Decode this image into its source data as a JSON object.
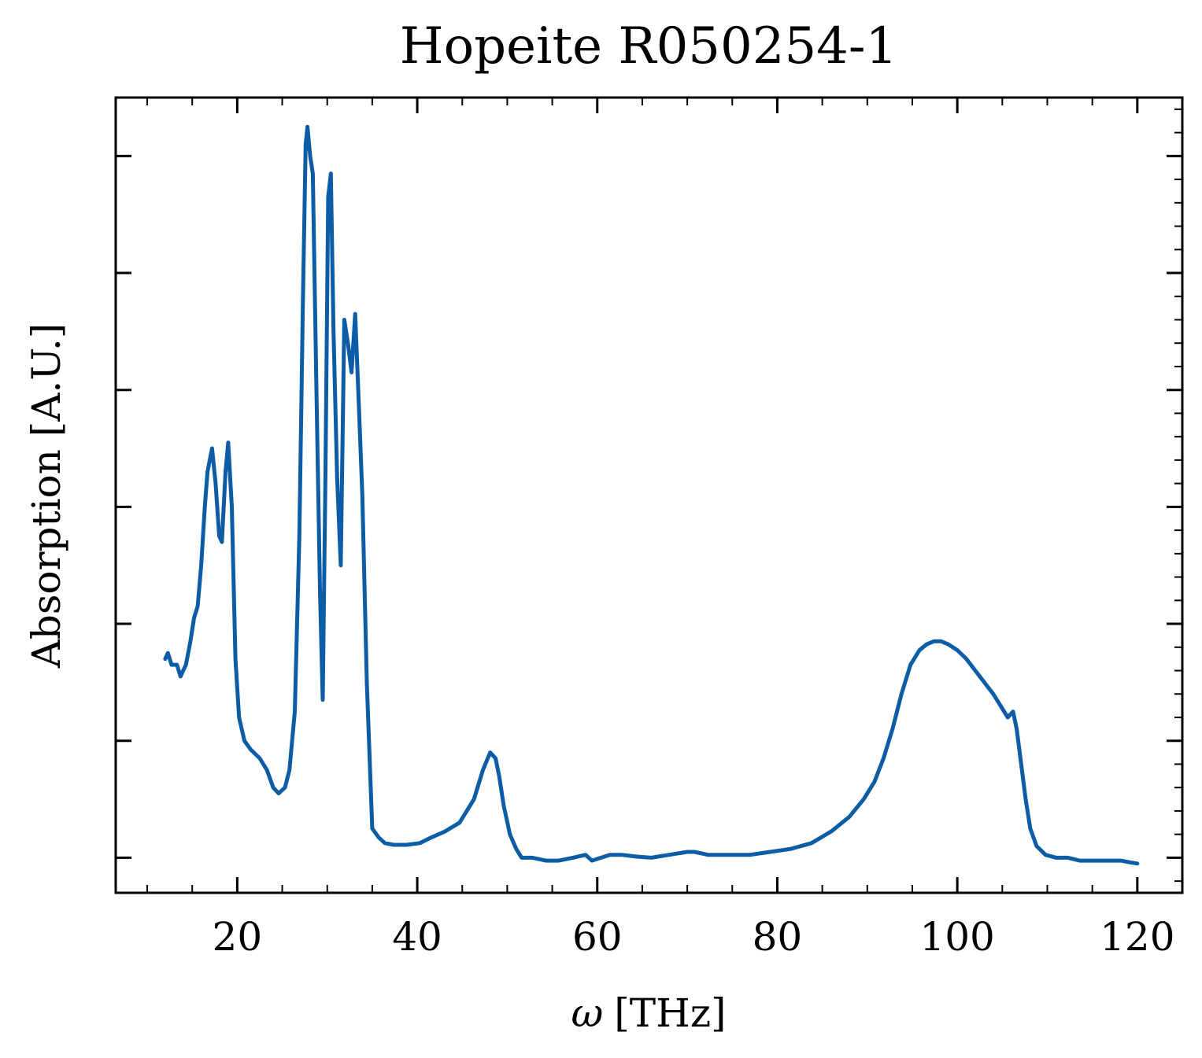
{
  "chart_data": {
    "type": "line",
    "title": "Hopeite R050254-1",
    "xlabel_symbol": "ω",
    "xlabel_unit": "[THz]",
    "ylabel": "Absorption [A.U.]",
    "xlim": [
      6.5,
      125
    ],
    "ylim": [
      -0.06,
      1.3
    ],
    "xticks": [
      20,
      40,
      60,
      80,
      100,
      120
    ],
    "xtick_labels": [
      "20",
      "40",
      "60",
      "80",
      "100",
      "120"
    ],
    "yticks": [
      0,
      0.2,
      0.4,
      0.6,
      0.8,
      1.0,
      1.2
    ],
    "grid": false,
    "legend": "none",
    "series": [
      {
        "color": "#0c5da5",
        "x": [
          12.0,
          12.3,
          12.7,
          13.3,
          13.7,
          14.3,
          14.8,
          15.2,
          15.6,
          16.0,
          16.4,
          16.7,
          17.2,
          17.6,
          18.0,
          18.3,
          18.7,
          19.0,
          19.4,
          19.8,
          20.2,
          20.8,
          21.5,
          22.5,
          23.3,
          24.0,
          24.6,
          25.3,
          25.8,
          26.4,
          26.9,
          27.3,
          27.6,
          27.8,
          28.1,
          28.4,
          28.8,
          29.2,
          29.5,
          29.8,
          30.1,
          30.4,
          30.7,
          31.1,
          31.5,
          31.9,
          32.3,
          32.7,
          33.1,
          33.5,
          33.9,
          34.4,
          35.0,
          35.7,
          36.4,
          37.4,
          38.8,
          40.3,
          41.6,
          43.1,
          44.7,
          46.3,
          47.3,
          48.1,
          48.7,
          49.1,
          49.6,
          50.3,
          51.0,
          51.6,
          52.8,
          54.3,
          55.7,
          57.3,
          58.7,
          59.4,
          60.0,
          61.4,
          62.7,
          64.3,
          66.0,
          68.0,
          70.0,
          70.8,
          72.3,
          74.5,
          77.0,
          79.2,
          81.5,
          83.8,
          86.0,
          88.0,
          89.6,
          90.8,
          91.8,
          92.8,
          93.8,
          94.8,
          95.8,
          96.6,
          97.4,
          98.2,
          99.0,
          100.0,
          101.0,
          102.0,
          103.0,
          104.0,
          104.8,
          105.6,
          106.2,
          106.6,
          107.1,
          107.6,
          108.1,
          108.8,
          109.8,
          111.0,
          112.3,
          113.6,
          115.0,
          116.6,
          118.2,
          119.2,
          120.0
        ],
        "y": [
          0.34,
          0.35,
          0.33,
          0.33,
          0.31,
          0.33,
          0.37,
          0.41,
          0.43,
          0.5,
          0.6,
          0.66,
          0.7,
          0.64,
          0.55,
          0.54,
          0.66,
          0.71,
          0.6,
          0.34,
          0.24,
          0.2,
          0.185,
          0.17,
          0.15,
          0.12,
          0.11,
          0.12,
          0.15,
          0.25,
          0.55,
          0.95,
          1.22,
          1.25,
          1.2,
          1.17,
          0.8,
          0.45,
          0.27,
          0.65,
          1.13,
          1.17,
          0.9,
          0.65,
          0.5,
          0.92,
          0.88,
          0.83,
          0.93,
          0.78,
          0.62,
          0.3,
          0.05,
          0.035,
          0.025,
          0.022,
          0.022,
          0.025,
          0.035,
          0.045,
          0.06,
          0.1,
          0.15,
          0.18,
          0.17,
          0.14,
          0.09,
          0.04,
          0.015,
          0.0,
          0.0,
          -0.005,
          -0.005,
          0.0,
          0.005,
          -0.005,
          -0.002,
          0.005,
          0.005,
          0.002,
          0.0,
          0.005,
          0.01,
          0.01,
          0.005,
          0.005,
          0.005,
          0.01,
          0.015,
          0.025,
          0.045,
          0.07,
          0.1,
          0.13,
          0.17,
          0.22,
          0.28,
          0.33,
          0.355,
          0.365,
          0.37,
          0.37,
          0.365,
          0.355,
          0.34,
          0.32,
          0.3,
          0.28,
          0.26,
          0.24,
          0.25,
          0.22,
          0.16,
          0.1,
          0.05,
          0.02,
          0.005,
          0.0,
          0.0,
          -0.005,
          -0.005,
          -0.005,
          -0.005,
          -0.008,
          -0.01
        ]
      }
    ]
  }
}
